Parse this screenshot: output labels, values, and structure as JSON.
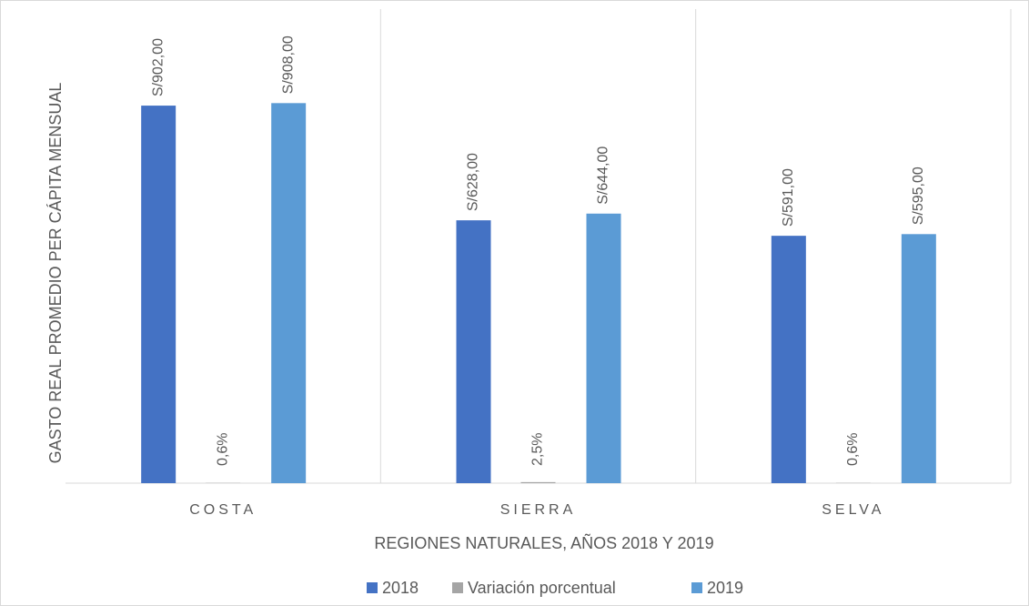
{
  "chart_data": {
    "type": "bar",
    "xlabel": "REGIONES NATURALES, AÑOS 2018 Y 2019",
    "ylabel": "GASTO REAL PROMEDIO PER CÁPITA MENSUAL",
    "categories": [
      "COSTA",
      "SIERRA",
      "SELVA"
    ],
    "series": [
      {
        "name": "2018",
        "color": "#4472c4",
        "values": [
          902,
          628,
          591
        ],
        "value_labels": [
          "S/902,00",
          "S/628,00",
          "S/591,00"
        ]
      },
      {
        "name": "Variación porcentual",
        "color": "#a5a5a5",
        "values": [
          0.6,
          2.5,
          0.6
        ],
        "value_labels": [
          "0,6%",
          "2,5%",
          "0,6%"
        ]
      },
      {
        "name": "2019",
        "color": "#5b9bd5",
        "values": [
          908,
          644,
          595
        ],
        "value_labels": [
          "S/908,00",
          "S/644,00",
          "S/595,00"
        ]
      }
    ],
    "ylim": [
      0,
      1000
    ],
    "legend": "bottom"
  }
}
